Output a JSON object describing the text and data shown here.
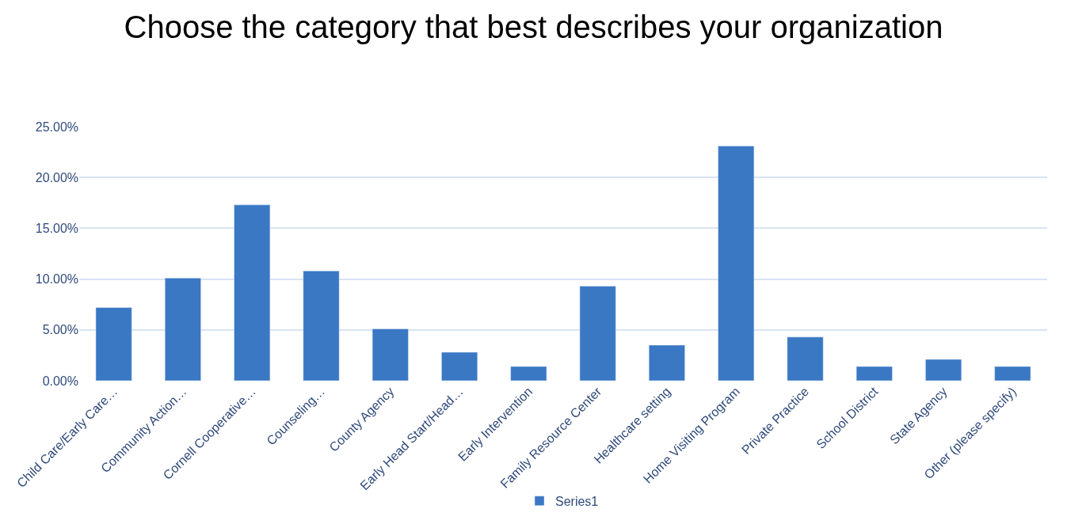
{
  "chart_data": {
    "type": "bar",
    "title": "Choose the category that best describes your organization",
    "categories": [
      "Child Care/Early Care…",
      "Community Action…",
      "Cornell Cooperative…",
      "Counseling…",
      "County Agency",
      "Early Head Start/Head…",
      "Early Intervention",
      "Family Resource Center",
      "Healthcare setting",
      "Home Visiting Program",
      "Private Practice",
      "School District",
      "State Agency",
      "Other (please specify)"
    ],
    "series": [
      {
        "name": "Series1",
        "color": "#3a78c4",
        "values": [
          7.2,
          10.1,
          17.3,
          10.8,
          5.1,
          2.8,
          1.4,
          9.3,
          3.5,
          23.1,
          4.3,
          1.4,
          2.1,
          1.4
        ]
      }
    ],
    "ylim": [
      0,
      25
    ],
    "yticks": [
      {
        "value": 0,
        "label": "0.00%"
      },
      {
        "value": 5,
        "label": "5.00%"
      },
      {
        "value": 10,
        "label": "10.00%"
      },
      {
        "value": 15,
        "label": "15.00%"
      },
      {
        "value": 20,
        "label": "20.00%"
      },
      {
        "value": 25,
        "label": "25.00%"
      }
    ],
    "grid": "y",
    "legend": "bottom"
  }
}
